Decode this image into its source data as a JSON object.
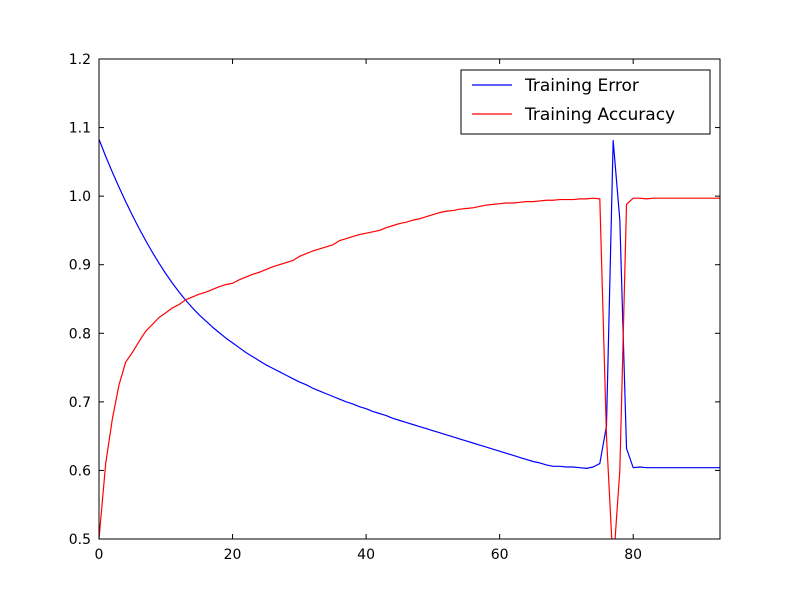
{
  "chart_data": {
    "type": "line",
    "title": "",
    "xlabel": "",
    "ylabel": "",
    "xlim": [
      0,
      93
    ],
    "ylim": [
      0.5,
      1.2
    ],
    "xticks": [
      0,
      20,
      40,
      60,
      80
    ],
    "yticks": [
      0.5,
      0.6,
      0.7,
      0.8,
      0.9,
      1.0,
      1.1,
      1.2
    ],
    "xtick_labels": [
      "0",
      "20",
      "40",
      "60",
      "80"
    ],
    "ytick_labels": [
      "0.5",
      "0.6",
      "0.7",
      "0.8",
      "0.9",
      "1.0",
      "1.1",
      "1.2"
    ],
    "grid": false,
    "legend_position": "upper right",
    "series": [
      {
        "name": "Training Error",
        "color": "#0000ff",
        "x": [
          0,
          1,
          2,
          3,
          4,
          5,
          6,
          7,
          8,
          9,
          10,
          11,
          12,
          13,
          14,
          15,
          16,
          17,
          18,
          19,
          20,
          21,
          22,
          23,
          24,
          25,
          26,
          27,
          28,
          29,
          30,
          31,
          32,
          33,
          34,
          35,
          36,
          37,
          38,
          39,
          40,
          41,
          42,
          43,
          44,
          45,
          46,
          47,
          48,
          49,
          50,
          51,
          52,
          53,
          54,
          55,
          56,
          57,
          58,
          59,
          60,
          61,
          62,
          63,
          64,
          65,
          66,
          67,
          68,
          69,
          70,
          71,
          72,
          73,
          74,
          75,
          76,
          77,
          78,
          79,
          80,
          81,
          82,
          83,
          84,
          85,
          86,
          87,
          88,
          89,
          90,
          91,
          92,
          93
        ],
        "values": [
          1.083,
          1.058,
          1.035,
          1.013,
          0.992,
          0.972,
          0.953,
          0.935,
          0.918,
          0.902,
          0.887,
          0.873,
          0.86,
          0.848,
          0.837,
          0.827,
          0.818,
          0.809,
          0.801,
          0.793,
          0.786,
          0.779,
          0.772,
          0.766,
          0.76,
          0.754,
          0.749,
          0.744,
          0.739,
          0.734,
          0.729,
          0.725,
          0.72,
          0.716,
          0.712,
          0.708,
          0.704,
          0.7,
          0.697,
          0.693,
          0.69,
          0.686,
          0.683,
          0.68,
          0.676,
          0.673,
          0.67,
          0.667,
          0.664,
          0.661,
          0.658,
          0.655,
          0.652,
          0.649,
          0.646,
          0.643,
          0.64,
          0.637,
          0.634,
          0.631,
          0.628,
          0.625,
          0.622,
          0.619,
          0.616,
          0.613,
          0.611,
          0.608,
          0.606,
          0.606,
          0.605,
          0.605,
          0.604,
          0.603,
          0.605,
          0.61,
          0.665,
          1.081,
          0.965,
          0.632,
          0.604,
          0.605,
          0.604,
          0.604,
          0.604,
          0.604,
          0.604,
          0.604,
          0.604,
          0.604,
          0.604,
          0.604,
          0.604,
          0.604
        ]
      },
      {
        "name": "Training Accuracy",
        "color": "#ff0000",
        "x": [
          0,
          1,
          2,
          3,
          4,
          5,
          6,
          7,
          8,
          9,
          10,
          11,
          12,
          13,
          14,
          15,
          16,
          17,
          18,
          19,
          20,
          21,
          22,
          23,
          24,
          25,
          26,
          27,
          28,
          29,
          30,
          31,
          32,
          33,
          34,
          35,
          36,
          37,
          38,
          39,
          40,
          41,
          42,
          43,
          44,
          45,
          46,
          47,
          48,
          49,
          50,
          51,
          52,
          53,
          54,
          55,
          56,
          57,
          58,
          59,
          60,
          61,
          62,
          63,
          64,
          65,
          66,
          67,
          68,
          69,
          70,
          71,
          72,
          73,
          74,
          75,
          76,
          77,
          78,
          79,
          80,
          81,
          82,
          83,
          84,
          85,
          86,
          87,
          88,
          89,
          90,
          91,
          92,
          93
        ],
        "values": [
          0.5,
          0.61,
          0.675,
          0.725,
          0.758,
          0.772,
          0.788,
          0.803,
          0.813,
          0.823,
          0.83,
          0.837,
          0.842,
          0.849,
          0.853,
          0.857,
          0.86,
          0.864,
          0.868,
          0.871,
          0.873,
          0.878,
          0.882,
          0.886,
          0.889,
          0.893,
          0.897,
          0.9,
          0.903,
          0.906,
          0.912,
          0.916,
          0.92,
          0.923,
          0.926,
          0.929,
          0.935,
          0.938,
          0.941,
          0.944,
          0.946,
          0.948,
          0.95,
          0.954,
          0.957,
          0.96,
          0.962,
          0.965,
          0.967,
          0.97,
          0.973,
          0.976,
          0.978,
          0.979,
          0.981,
          0.982,
          0.983,
          0.985,
          0.987,
          0.988,
          0.989,
          0.99,
          0.99,
          0.991,
          0.992,
          0.992,
          0.993,
          0.994,
          0.994,
          0.995,
          0.995,
          0.995,
          0.996,
          0.996,
          0.997,
          0.996,
          0.65,
          0.46,
          0.6,
          0.988,
          0.997,
          0.997,
          0.996,
          0.997,
          0.997,
          0.997,
          0.997,
          0.997,
          0.997,
          0.997,
          0.997,
          0.997,
          0.997,
          0.997
        ]
      }
    ]
  }
}
